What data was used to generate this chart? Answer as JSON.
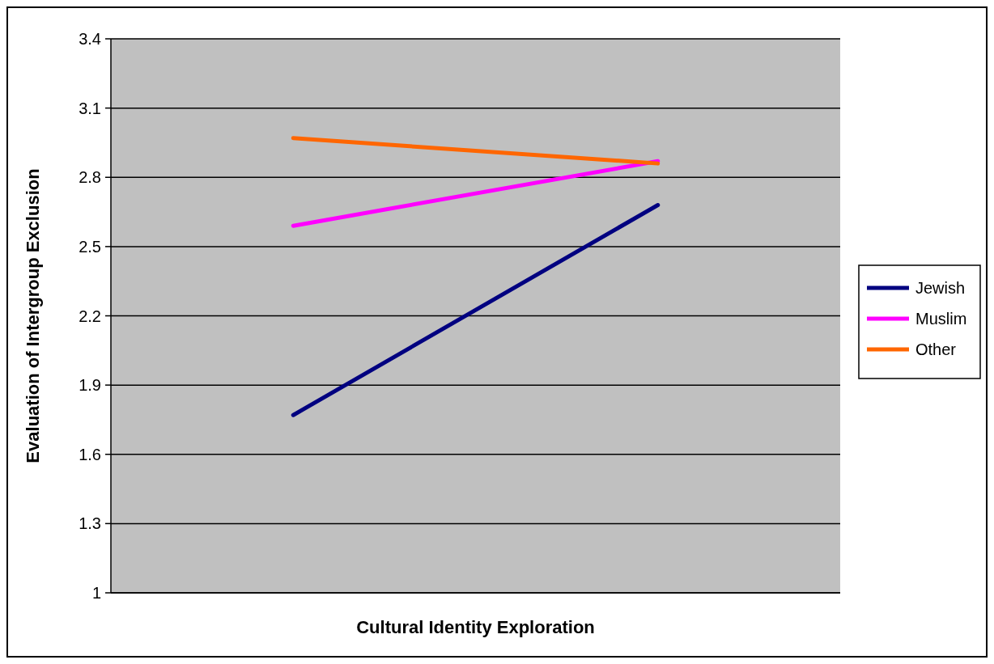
{
  "chart_data": {
    "type": "line",
    "xlabel": "Cultural Identity Exploration",
    "ylabel": "Evaluation of Intergroup Exclusion",
    "categories": [
      null,
      null
    ],
    "series": [
      {
        "name": "Jewish",
        "color": "#000080",
        "values": [
          1.77,
          2.68
        ]
      },
      {
        "name": "Muslim",
        "color": "#ff00ff",
        "values": [
          2.59,
          2.87
        ]
      },
      {
        "name": "Other",
        "color": "#ff6600",
        "values": [
          2.97,
          2.86
        ]
      }
    ],
    "ylim": [
      1,
      3.4
    ],
    "yticks": [
      1,
      1.3,
      1.6,
      1.9,
      2.2,
      2.5,
      2.8,
      3.1,
      3.4
    ],
    "grid": "y",
    "legend": "right",
    "marker": "none",
    "line_style": "solid"
  }
}
